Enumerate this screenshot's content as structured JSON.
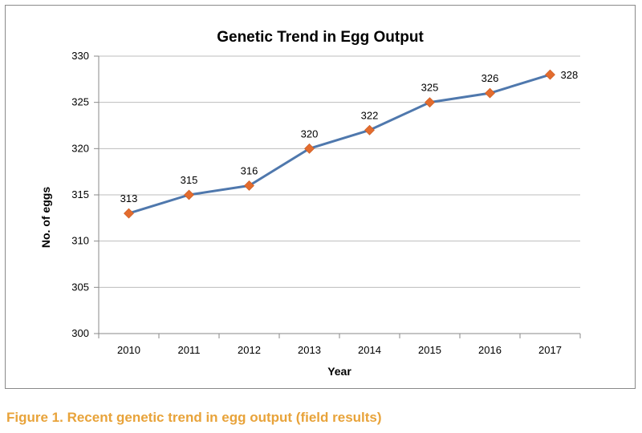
{
  "chart_data": {
    "type": "line",
    "title": "Genetic Trend in Egg Output",
    "xlabel": "Year",
    "ylabel": "No. of eggs",
    "categories": [
      "2010",
      "2011",
      "2012",
      "2013",
      "2014",
      "2015",
      "2016",
      "2017"
    ],
    "series": [
      {
        "values": [
          313,
          315,
          316,
          320,
          322,
          325,
          326,
          328
        ]
      }
    ],
    "data_labels": [
      "313",
      "315",
      "316",
      "320",
      "322",
      "325",
      "326",
      "328"
    ],
    "ylim": [
      300,
      330
    ],
    "yticks": [
      "300",
      "305",
      "310",
      "315",
      "320",
      "325",
      "330"
    ],
    "grid": "horizontal",
    "legend": "none",
    "colors": {
      "line": "#4f78ad",
      "marker": "#e36c2e",
      "grid": "#bdbdbd"
    }
  },
  "caption": "Figure 1. Recent genetic trend in egg output (field results)"
}
